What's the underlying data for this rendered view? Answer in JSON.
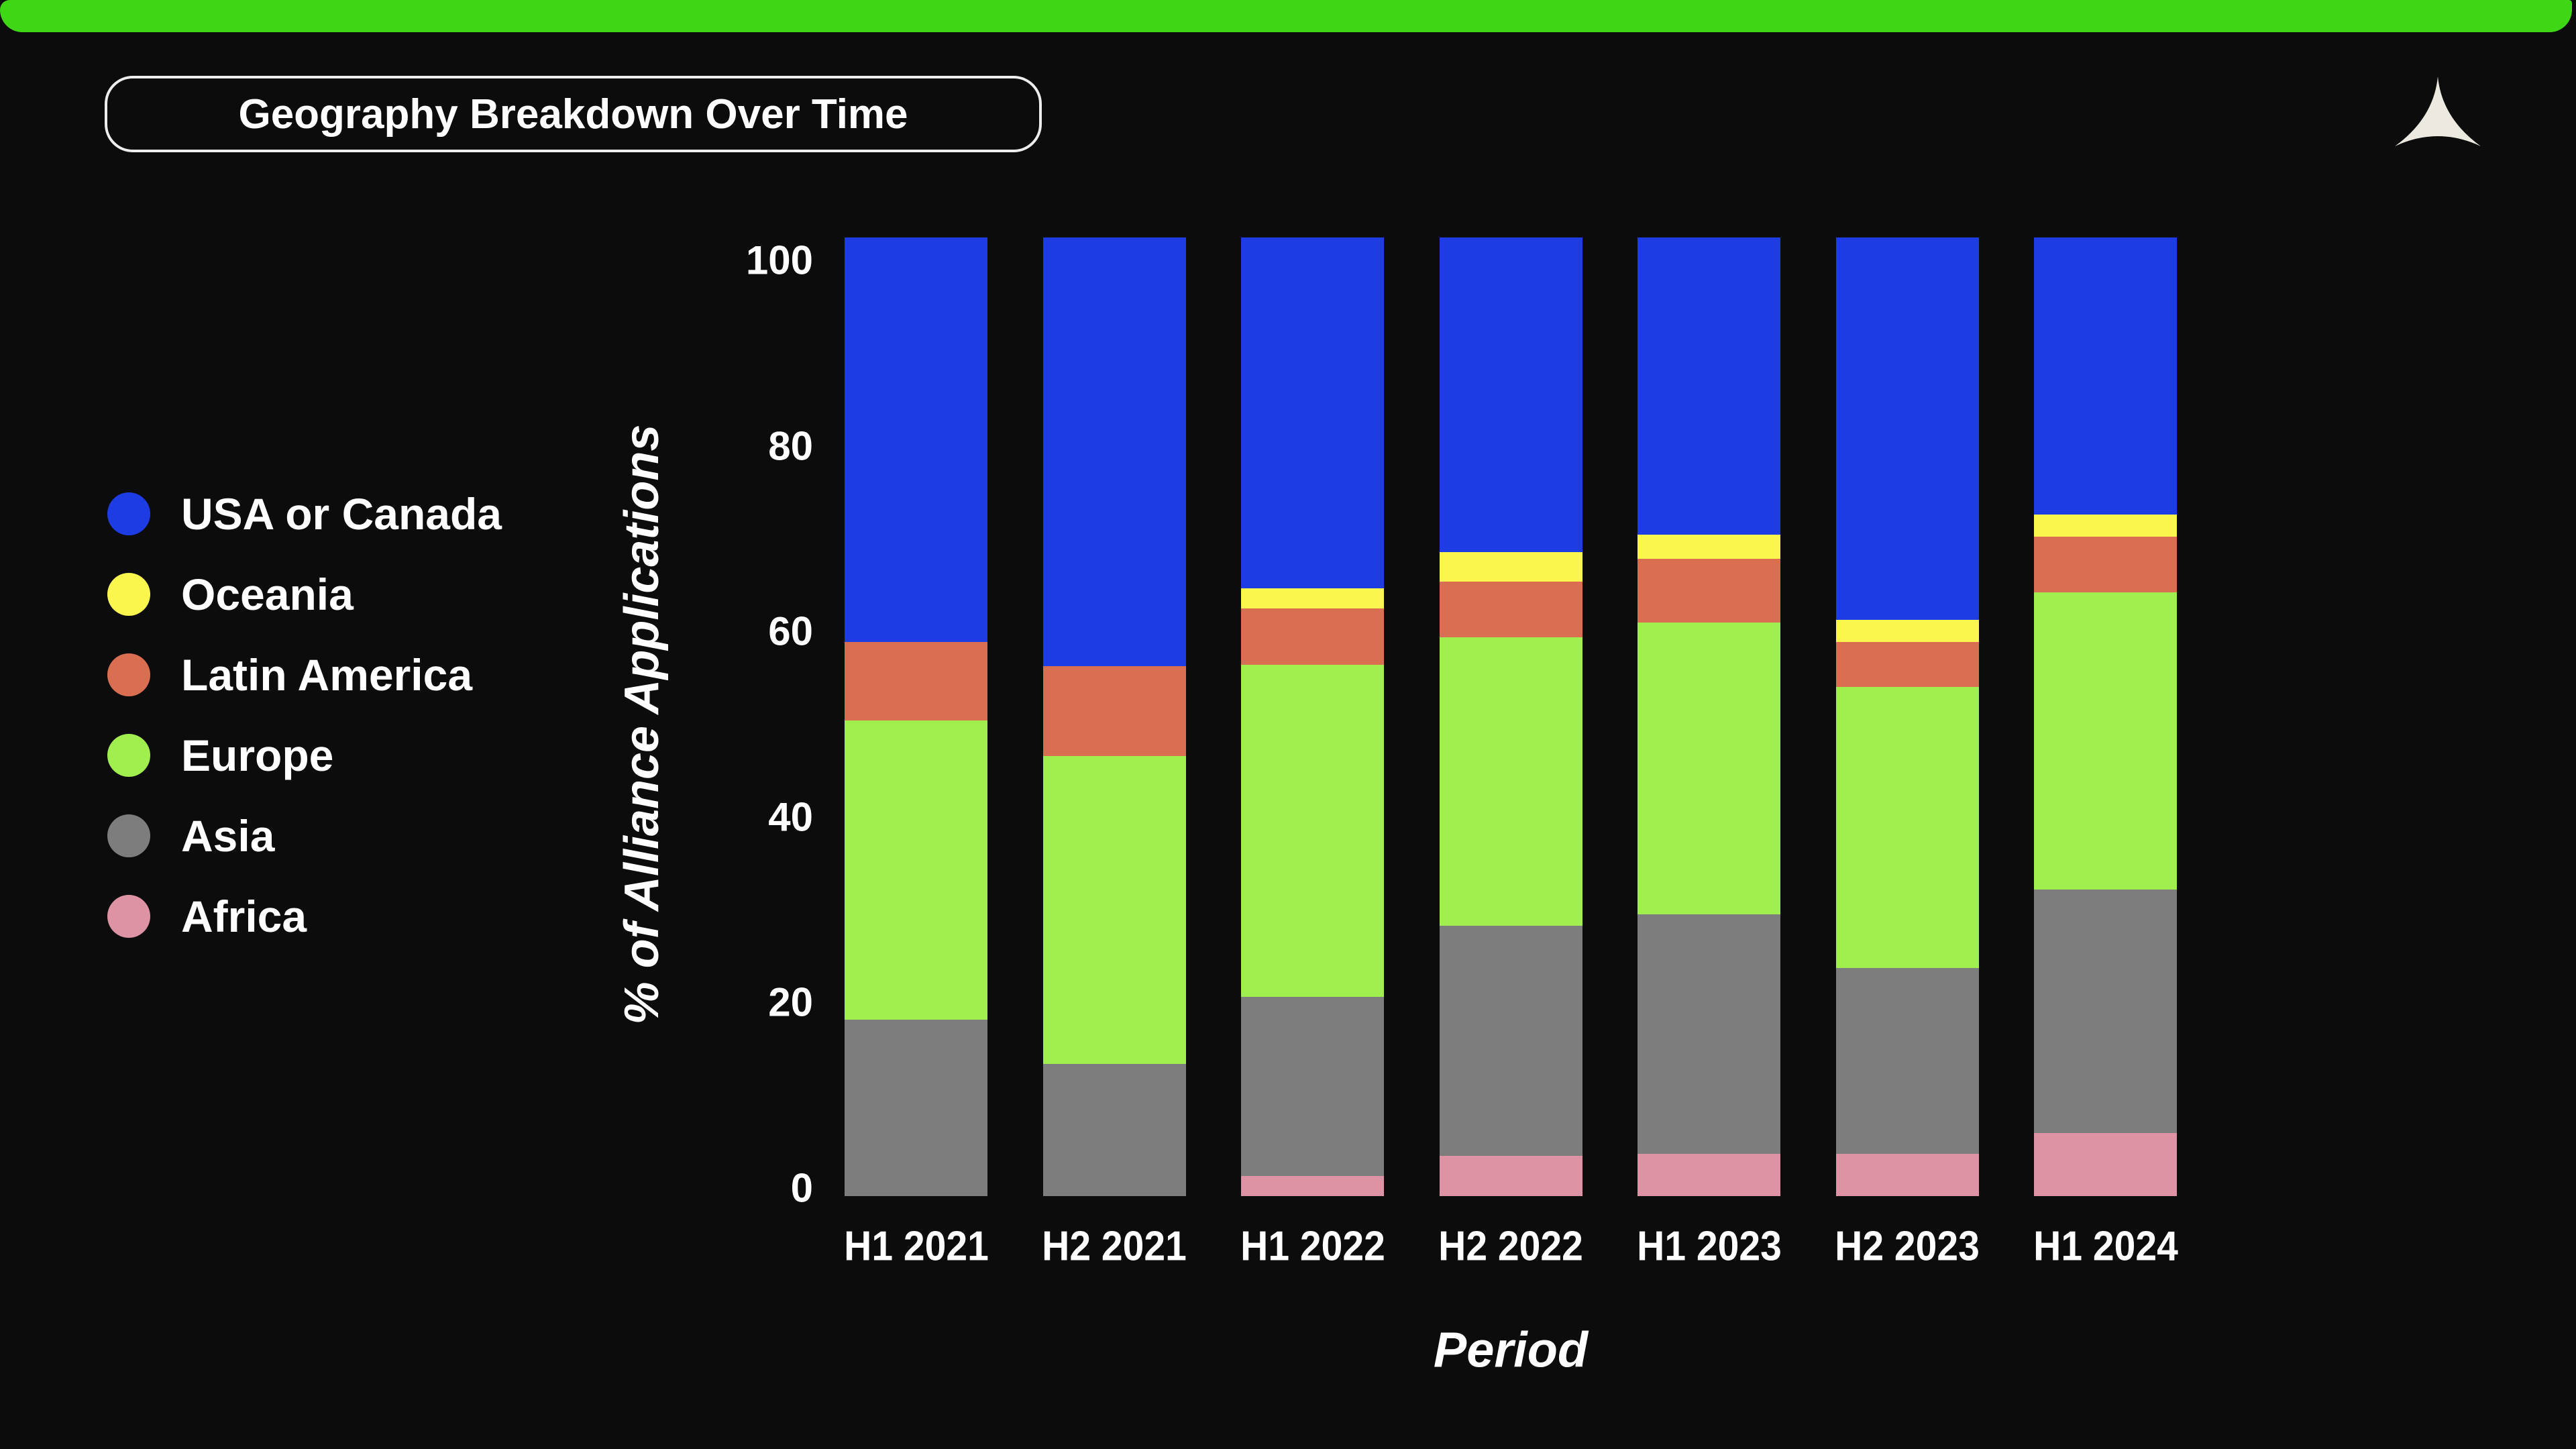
{
  "page": {
    "background": "#0c0c0c",
    "top_bar_color": "#3fd615"
  },
  "header": {
    "title": "Geography Breakdown Over Time",
    "logo_icon": "tricorn-triangle-icon",
    "logo_color": "#ece9e0"
  },
  "chart_data": {
    "type": "bar",
    "stacked": true,
    "stack_total": 100,
    "title": "Geography Breakdown Over Time",
    "xlabel": "Period",
    "ylabel": "% of Alliance Applications",
    "ylim": [
      0,
      100
    ],
    "yticks": [
      0,
      20,
      40,
      60,
      80,
      100
    ],
    "grid": false,
    "legend_position": "left",
    "categories": [
      "H1 2021",
      "H2 2021",
      "H1 2022",
      "H2 2022",
      "H1 2023",
      "H2 2023",
      "H1 2024"
    ],
    "series": [
      {
        "name": "USA or Canada",
        "color": "#1e3ce4",
        "values": [
          42.2,
          44.7,
          36.6,
          32.8,
          31.0,
          39.9,
          28.9
        ]
      },
      {
        "name": "Oceania",
        "color": "#faf64d",
        "values": [
          0.0,
          0.0,
          2.1,
          3.1,
          2.5,
          2.3,
          2.3
        ]
      },
      {
        "name": "Latin America",
        "color": "#d96e51",
        "values": [
          8.2,
          9.4,
          5.9,
          5.8,
          6.7,
          4.7,
          5.8
        ]
      },
      {
        "name": "Europe",
        "color": "#a1ef4f",
        "values": [
          31.2,
          32.1,
          34.6,
          30.1,
          30.4,
          29.3,
          31.0
        ]
      },
      {
        "name": "Asia",
        "color": "#7d7d7d",
        "values": [
          18.4,
          13.8,
          18.7,
          24.0,
          25.0,
          19.4,
          25.4
        ]
      },
      {
        "name": "Africa",
        "color": "#de93a4",
        "values": [
          0.0,
          0.0,
          2.1,
          4.2,
          4.4,
          4.4,
          6.6
        ]
      }
    ]
  }
}
